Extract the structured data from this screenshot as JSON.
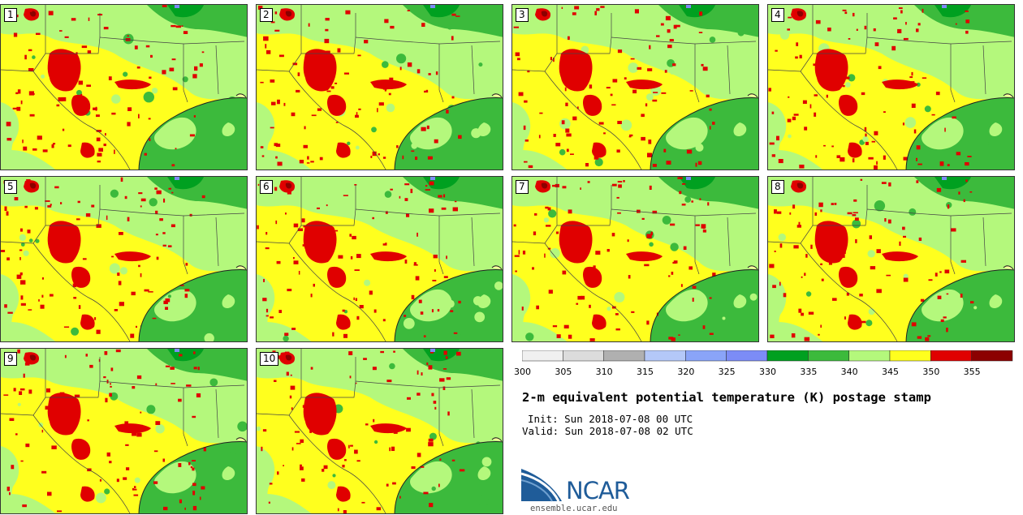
{
  "panels": [
    {
      "label": "1"
    },
    {
      "label": "2"
    },
    {
      "label": "3"
    },
    {
      "label": "4"
    },
    {
      "label": "5"
    },
    {
      "label": "6"
    },
    {
      "label": "7"
    },
    {
      "label": "8"
    },
    {
      "label": "9"
    },
    {
      "label": "10"
    }
  ],
  "colorbar": {
    "ticks": [
      "300",
      "305",
      "310",
      "315",
      "320",
      "325",
      "330",
      "335",
      "340",
      "345",
      "350",
      "355"
    ],
    "colors": [
      "#f0f0f0",
      "#dcdcdc",
      "#b0b0b0",
      "#b4c8f8",
      "#8aa4f8",
      "#7c8cf6",
      "#00a020",
      "#3cba3c",
      "#b4f87c",
      "#ffff1e",
      "#e00000",
      "#8c0000"
    ]
  },
  "title": "2-m equivalent potential temperature (K) postage stamp",
  "init": "Init: Sun 2018-07-08 00 UTC",
  "valid": "Valid: Sun 2018-07-08 02 UTC",
  "logo_text": "NCAR",
  "site": "ensemble.ucar.edu",
  "map_colors": {
    "yellow": "#ffff1e",
    "light_green": "#b4f87c",
    "green": "#3cba3c",
    "dark_green": "#00a020",
    "red": "#e00000",
    "dark_red": "#8c0000",
    "blue": "#7c8cf6"
  }
}
